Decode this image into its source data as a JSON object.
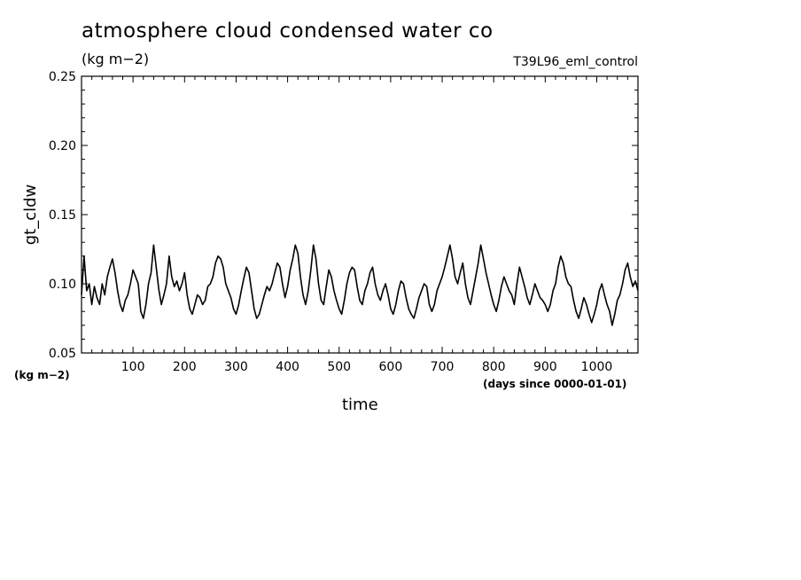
{
  "header": {
    "title": "atmosphere cloud condensed water co",
    "units": "(kg m−2)",
    "experiment": "T39L96_eml_control"
  },
  "chart_data": {
    "type": "line",
    "title": "atmosphere cloud condensed water co",
    "xlabel": "time",
    "xunit": "(days since 0000-01-01)",
    "ylabel": "gt_cldw",
    "yunit": "(kg m−2)",
    "xlim": [
      0,
      1080
    ],
    "ylim": [
      0.05,
      0.25
    ],
    "xticks": [
      100,
      200,
      300,
      400,
      500,
      600,
      700,
      800,
      900,
      1000
    ],
    "xtick_labels": [
      "100",
      "200",
      "300",
      "400",
      "500",
      "600",
      "700",
      "800",
      "900",
      "1000"
    ],
    "yticks": [
      0.05,
      0.1,
      0.15,
      0.2,
      0.25
    ],
    "ytick_labels": [
      "0.05",
      "0.10",
      "0.15",
      "0.20",
      "0.25"
    ],
    "grid": false,
    "line_color": "#000000",
    "series": [
      {
        "x": [
          0,
          5,
          10,
          15,
          20,
          25,
          30,
          35,
          40,
          45,
          50,
          55,
          60,
          65,
          70,
          75,
          80,
          85,
          90,
          95,
          100,
          105,
          110,
          115,
          120,
          125,
          130,
          135,
          140,
          145,
          150,
          155,
          160,
          165,
          170,
          175,
          180,
          185,
          190,
          195,
          200,
          205,
          210,
          215,
          220,
          225,
          230,
          235,
          240,
          245,
          250,
          255,
          260,
          265,
          270,
          275,
          280,
          285,
          290,
          295,
          300,
          305,
          310,
          315,
          320,
          325,
          330,
          335,
          340,
          345,
          350,
          355,
          360,
          365,
          370,
          375,
          380,
          385,
          390,
          395,
          400,
          405,
          410,
          415,
          420,
          425,
          430,
          435,
          440,
          445,
          450,
          455,
          460,
          465,
          470,
          475,
          480,
          485,
          490,
          495,
          500,
          505,
          510,
          515,
          520,
          525,
          530,
          535,
          540,
          545,
          550,
          555,
          560,
          565,
          570,
          575,
          580,
          585,
          590,
          595,
          600,
          605,
          610,
          615,
          620,
          625,
          630,
          635,
          640,
          645,
          650,
          655,
          660,
          665,
          670,
          675,
          680,
          685,
          690,
          695,
          700,
          705,
          710,
          715,
          720,
          725,
          730,
          735,
          740,
          745,
          750,
          755,
          760,
          765,
          770,
          775,
          780,
          785,
          790,
          795,
          800,
          805,
          810,
          815,
          820,
          825,
          830,
          835,
          840,
          845,
          850,
          855,
          860,
          865,
          870,
          875,
          880,
          885,
          890,
          895,
          900,
          905,
          910,
          915,
          920,
          925,
          930,
          935,
          940,
          945,
          950,
          955,
          960,
          965,
          970,
          975,
          980,
          985,
          990,
          995,
          1000,
          1005,
          1010,
          1015,
          1020,
          1025,
          1030,
          1035,
          1040,
          1045,
          1050,
          1055,
          1060,
          1065,
          1070,
          1075,
          1080
        ],
        "y": [
          0.092,
          0.12,
          0.095,
          0.1,
          0.085,
          0.098,
          0.09,
          0.085,
          0.1,
          0.092,
          0.105,
          0.112,
          0.118,
          0.108,
          0.095,
          0.085,
          0.08,
          0.088,
          0.092,
          0.1,
          0.11,
          0.105,
          0.1,
          0.08,
          0.075,
          0.085,
          0.1,
          0.108,
          0.128,
          0.112,
          0.096,
          0.085,
          0.092,
          0.1,
          0.12,
          0.105,
          0.098,
          0.102,
          0.095,
          0.1,
          0.108,
          0.092,
          0.082,
          0.078,
          0.085,
          0.092,
          0.09,
          0.085,
          0.088,
          0.098,
          0.1,
          0.105,
          0.115,
          0.12,
          0.118,
          0.112,
          0.1,
          0.095,
          0.09,
          0.082,
          0.078,
          0.085,
          0.095,
          0.104,
          0.112,
          0.108,
          0.095,
          0.082,
          0.075,
          0.078,
          0.085,
          0.092,
          0.098,
          0.095,
          0.1,
          0.108,
          0.115,
          0.112,
          0.1,
          0.09,
          0.098,
          0.11,
          0.118,
          0.128,
          0.122,
          0.105,
          0.092,
          0.085,
          0.095,
          0.11,
          0.128,
          0.118,
          0.1,
          0.088,
          0.085,
          0.098,
          0.11,
          0.105,
          0.095,
          0.088,
          0.082,
          0.078,
          0.088,
          0.1,
          0.108,
          0.112,
          0.11,
          0.098,
          0.088,
          0.085,
          0.095,
          0.1,
          0.108,
          0.112,
          0.1,
          0.092,
          0.088,
          0.095,
          0.1,
          0.092,
          0.082,
          0.078,
          0.085,
          0.095,
          0.102,
          0.1,
          0.09,
          0.082,
          0.078,
          0.075,
          0.082,
          0.09,
          0.095,
          0.1,
          0.098,
          0.085,
          0.08,
          0.085,
          0.095,
          0.1,
          0.105,
          0.112,
          0.12,
          0.128,
          0.118,
          0.105,
          0.1,
          0.108,
          0.115,
          0.1,
          0.09,
          0.085,
          0.095,
          0.105,
          0.115,
          0.128,
          0.118,
          0.108,
          0.1,
          0.092,
          0.085,
          0.08,
          0.088,
          0.098,
          0.105,
          0.1,
          0.095,
          0.092,
          0.085,
          0.1,
          0.112,
          0.105,
          0.098,
          0.09,
          0.085,
          0.092,
          0.1,
          0.095,
          0.09,
          0.088,
          0.085,
          0.08,
          0.085,
          0.095,
          0.1,
          0.112,
          0.12,
          0.115,
          0.105,
          0.1,
          0.098,
          0.088,
          0.08,
          0.075,
          0.082,
          0.09,
          0.085,
          0.078,
          0.072,
          0.078,
          0.085,
          0.095,
          0.1,
          0.092,
          0.085,
          0.08,
          0.07,
          0.078,
          0.088,
          0.092,
          0.1,
          0.11,
          0.115,
          0.105,
          0.098,
          0.102,
          0.095
        ]
      }
    ]
  }
}
